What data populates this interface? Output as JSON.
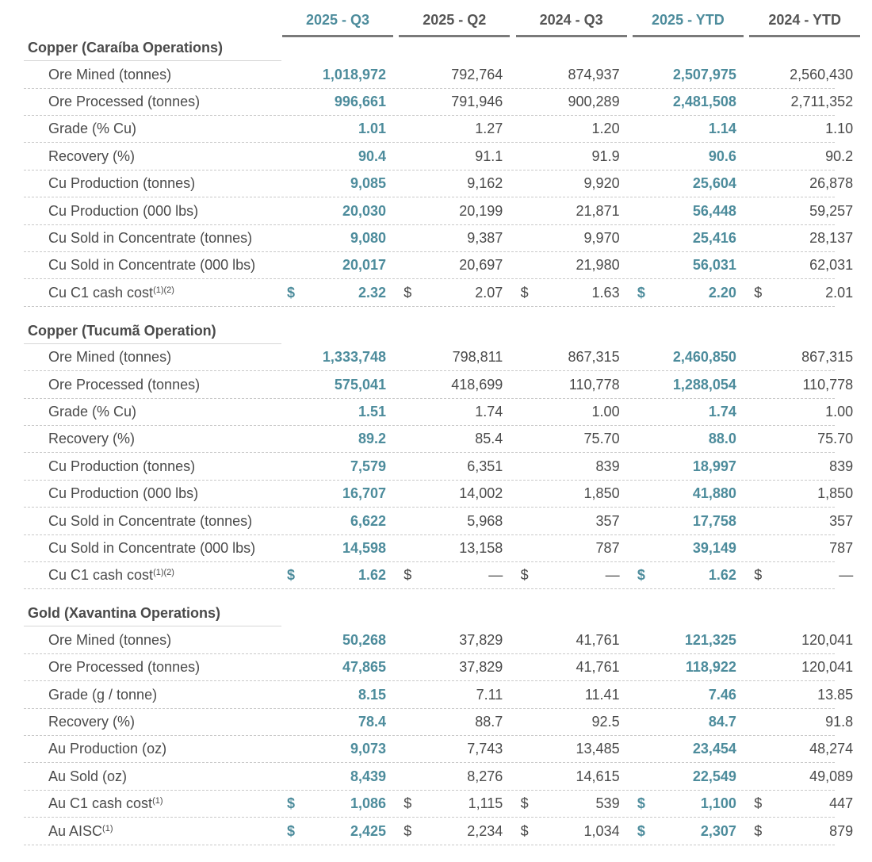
{
  "header": {
    "columns": [
      "2025 - Q3",
      "2025 - Q2",
      "2024 - Q3",
      "2025 - YTD",
      "2024 - YTD"
    ]
  },
  "sections": [
    {
      "title": "Copper (Caraíba Operations)",
      "rows": [
        {
          "label": "Ore Mined (tonnes)",
          "values": [
            "1,018,972",
            "792,764",
            "874,937",
            "2,507,975",
            "2,560,430"
          ]
        },
        {
          "label": "Ore Processed (tonnes)",
          "values": [
            "996,661",
            "791,946",
            "900,289",
            "2,481,508",
            "2,711,352"
          ]
        },
        {
          "label": "Grade (% Cu)",
          "values": [
            "1.01",
            "1.27",
            "1.20",
            "1.14",
            "1.10"
          ]
        },
        {
          "label": "Recovery (%)",
          "values": [
            "90.4",
            "91.1",
            "91.9",
            "90.6",
            "90.2"
          ]
        },
        {
          "label": "Cu Production (tonnes)",
          "values": [
            "9,085",
            "9,162",
            "9,920",
            "25,604",
            "26,878"
          ]
        },
        {
          "label": "Cu Production (000 lbs)",
          "values": [
            "20,030",
            "20,199",
            "21,871",
            "56,448",
            "59,257"
          ]
        },
        {
          "label": "Cu Sold in Concentrate (tonnes)",
          "values": [
            "9,080",
            "9,387",
            "9,970",
            "25,416",
            "28,137"
          ]
        },
        {
          "label": "Cu Sold in Concentrate (000 lbs)",
          "values": [
            "20,017",
            "20,697",
            "21,980",
            "56,031",
            "62,031"
          ]
        },
        {
          "label": "Cu C1 cash cost",
          "note": "(1)(2)",
          "currency": "$",
          "values": [
            "2.32",
            "2.07",
            "1.63",
            "2.20",
            "2.01"
          ]
        }
      ]
    },
    {
      "title": "Copper (Tucumã Operation)",
      "rows": [
        {
          "label": "Ore Mined (tonnes)",
          "values": [
            "1,333,748",
            "798,811",
            "867,315",
            "2,460,850",
            "867,315"
          ]
        },
        {
          "label": "Ore Processed (tonnes)",
          "values": [
            "575,041",
            "418,699",
            "110,778",
            "1,288,054",
            "110,778"
          ]
        },
        {
          "label": "Grade (% Cu)",
          "values": [
            "1.51",
            "1.74",
            "1.00",
            "1.74",
            "1.00"
          ]
        },
        {
          "label": "Recovery (%)",
          "values": [
            "89.2",
            "85.4",
            "75.70",
            "88.0",
            "75.70"
          ]
        },
        {
          "label": "Cu Production (tonnes)",
          "values": [
            "7,579",
            "6,351",
            "839",
            "18,997",
            "839"
          ]
        },
        {
          "label": "Cu Production (000 lbs)",
          "values": [
            "16,707",
            "14,002",
            "1,850",
            "41,880",
            "1,850"
          ]
        },
        {
          "label": "Cu Sold in Concentrate (tonnes)",
          "values": [
            "6,622",
            "5,968",
            "357",
            "17,758",
            "357"
          ]
        },
        {
          "label": "Cu Sold in Concentrate (000 lbs)",
          "values": [
            "14,598",
            "13,158",
            "787",
            "39,149",
            "787"
          ]
        },
        {
          "label": "Cu C1 cash cost",
          "note": "(1)(2)",
          "currency": "$",
          "values": [
            "1.62",
            "—",
            "—",
            "1.62",
            "—"
          ]
        }
      ]
    },
    {
      "title": "Gold (Xavantina Operations)",
      "rows": [
        {
          "label": "Ore Mined (tonnes)",
          "values": [
            "50,268",
            "37,829",
            "41,761",
            "121,325",
            "120,041"
          ]
        },
        {
          "label": "Ore Processed (tonnes)",
          "values": [
            "47,865",
            "37,829",
            "41,761",
            "118,922",
            "120,041"
          ]
        },
        {
          "label": "Grade (g / tonne)",
          "values": [
            "8.15",
            "7.11",
            "11.41",
            "7.46",
            "13.85"
          ]
        },
        {
          "label": "Recovery (%)",
          "values": [
            "78.4",
            "88.7",
            "92.5",
            "84.7",
            "91.8"
          ]
        },
        {
          "label": "Au Production (oz)",
          "values": [
            "9,073",
            "7,743",
            "13,485",
            "23,454",
            "48,274"
          ]
        },
        {
          "label": "Au Sold (oz)",
          "values": [
            "8,439",
            "8,276",
            "14,615",
            "22,549",
            "49,089"
          ]
        },
        {
          "label": "Au C1 cash cost",
          "note": "(1)",
          "currency": "$",
          "values": [
            "1,086",
            "1,115",
            "539",
            "1,100",
            "447"
          ]
        },
        {
          "label": "Au AISC",
          "note": "(1)",
          "currency": "$",
          "values": [
            "2,425",
            "2,234",
            "1,034",
            "2,307",
            "879"
          ]
        }
      ]
    }
  ]
}
